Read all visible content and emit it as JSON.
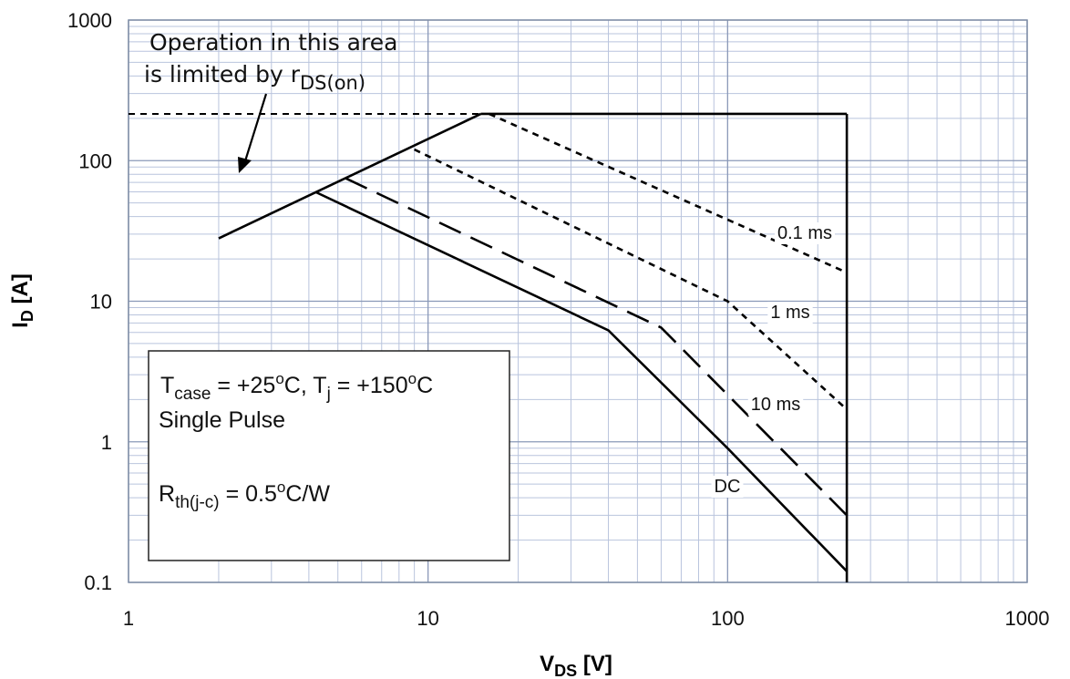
{
  "chart_data": {
    "type": "line",
    "x_scale": "log",
    "y_scale": "log",
    "xlim": [
      1,
      1000
    ],
    "ylim": [
      0.1,
      1000
    ],
    "grid": true,
    "x_ticks": [
      "1",
      "10",
      "100",
      "1000"
    ],
    "y_ticks": [
      "0.1",
      "1",
      "10",
      "100",
      "1000"
    ],
    "xlabel": {
      "main": "V",
      "sub": "DS",
      "unit": " [V]"
    },
    "ylabel": {
      "main": "I",
      "sub": "D",
      "unit": " [A]"
    },
    "series": [
      {
        "name": "DC",
        "style": "solid",
        "x": [
          4.2,
          40,
          100,
          250
        ],
        "y": [
          60,
          6.2,
          0.9,
          0.12
        ]
      },
      {
        "name": "10 ms",
        "style": "long-dash",
        "x": [
          5.3,
          60,
          250
        ],
        "y": [
          75,
          6.5,
          0.3
        ]
      },
      {
        "name": "1 ms",
        "style": "short-dash",
        "x": [
          9,
          100,
          250
        ],
        "y": [
          120,
          10,
          1.7
        ]
      },
      {
        "name": "0.1 ms",
        "style": "short-dash",
        "x": [
          16,
          250
        ],
        "y": [
          215,
          16
        ]
      }
    ],
    "limit_lines": {
      "rds_on": {
        "x": [
          2,
          15
        ],
        "y": [
          28,
          215
        ]
      },
      "current_limit": {
        "x": [
          15,
          250
        ],
        "y": [
          215,
          215
        ]
      },
      "current_limit_extension": {
        "x": [
          1,
          15
        ],
        "y": [
          215,
          215
        ]
      },
      "voltage_limit": {
        "x": [
          250,
          250
        ],
        "y": [
          215,
          0.1
        ]
      }
    },
    "annotation": {
      "line1": "Operation in this area",
      "line2_main": "is limited by r",
      "line2_sub": "DS(on)"
    },
    "info_box": {
      "t_case_main": "T",
      "t_case_sub": "case",
      "t_case_value": " = +25",
      "t_case_sup": "o",
      "t_case_unit": "C, T",
      "tj_sub": "j",
      "tj_value": " = +150",
      "tj_sup": "o",
      "tj_unit": "C",
      "pulse": "Single Pulse",
      "rth_main": "R",
      "rth_sub": "th(j-c)",
      "rth_value": " = 0.5",
      "rth_sup": "o",
      "rth_unit": "C/W"
    }
  }
}
